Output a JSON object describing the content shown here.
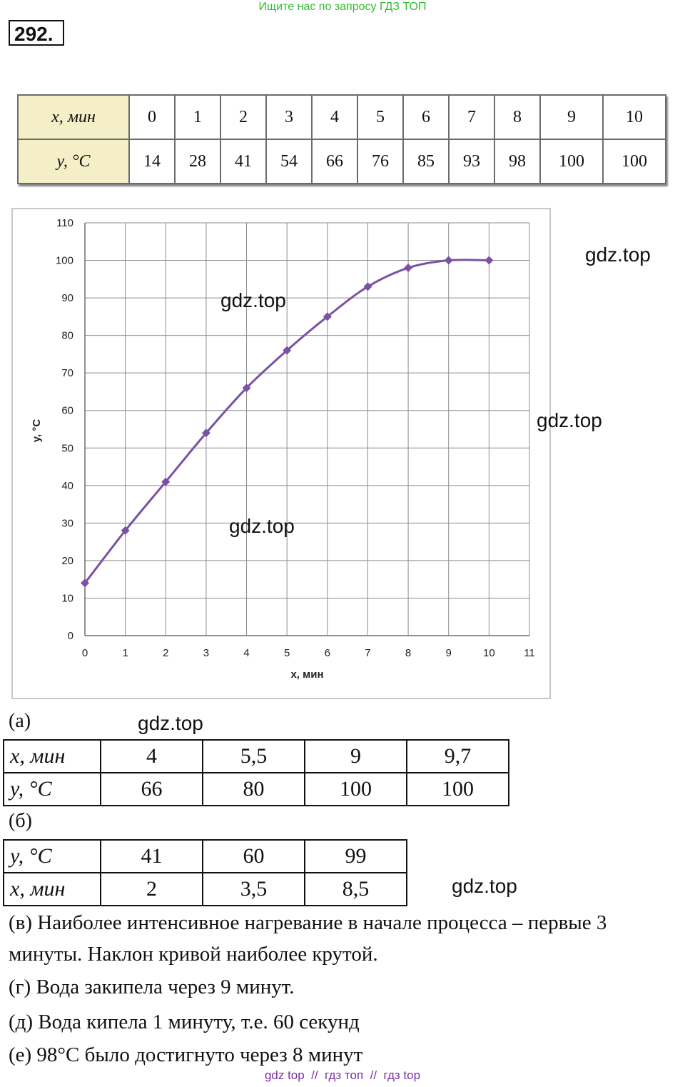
{
  "top_banner": "Ищите нас по запросу ГДЗ ТОП",
  "task_number": "292.",
  "data_table": {
    "x_header": "x, мин",
    "y_header": "y, °C",
    "x_values": [
      "0",
      "1",
      "2",
      "3",
      "4",
      "5",
      "6",
      "7",
      "8",
      "9",
      "10"
    ],
    "y_values": [
      "14",
      "28",
      "41",
      "54",
      "66",
      "76",
      "85",
      "93",
      "98",
      "100",
      "100"
    ]
  },
  "watermarks": [
    "gdz.top",
    "gdz.top",
    "gdz.top",
    "gdz.top",
    "gdz.top",
    "gdz.top"
  ],
  "chart_data": {
    "type": "line",
    "xlabel": "x, мин",
    "ylabel": "y, °C",
    "xlim": [
      0,
      11
    ],
    "ylim": [
      0,
      110
    ],
    "x_ticks": [
      "0",
      "1",
      "2",
      "3",
      "4",
      "5",
      "6",
      "7",
      "8",
      "9",
      "10",
      "11"
    ],
    "y_ticks": [
      "0",
      "10",
      "20",
      "30",
      "40",
      "50",
      "60",
      "70",
      "80",
      "90",
      "100",
      "110"
    ],
    "grid": true,
    "color": "#7b52a3",
    "x": [
      0,
      1,
      2,
      3,
      4,
      5,
      6,
      7,
      8,
      9,
      10
    ],
    "y": [
      14,
      28,
      41,
      54,
      66,
      76,
      85,
      93,
      98,
      100,
      100
    ]
  },
  "part_a": {
    "label": "(а)",
    "x_header": "x, мин",
    "y_header": "y, °C",
    "x_values": [
      "4",
      "5,5",
      "9",
      "9,7"
    ],
    "y_values": [
      "66",
      "80",
      "100",
      "100"
    ]
  },
  "part_b": {
    "label": "(б)",
    "y_header": "y, °C",
    "x_header": "x, мин",
    "y_values": [
      "41",
      "60",
      "99"
    ],
    "x_values": [
      "2",
      "3,5",
      "8,5"
    ]
  },
  "answers": {
    "v_line1": "(в) Наиболее интенсивное нагревание в начале процесса – первые 3",
    "v_line2": "минуты. Наклон кривой наиболее крутой.",
    "g": "(г) Вода закипела через 9 минут.",
    "d": "(д) Вода кипела 1 минуту, т.е. 60 секунд",
    "e": "(е) 98°C было достигнуто через 8 минут"
  },
  "footer": "gdz top  //  гдз топ  //  гдз top"
}
